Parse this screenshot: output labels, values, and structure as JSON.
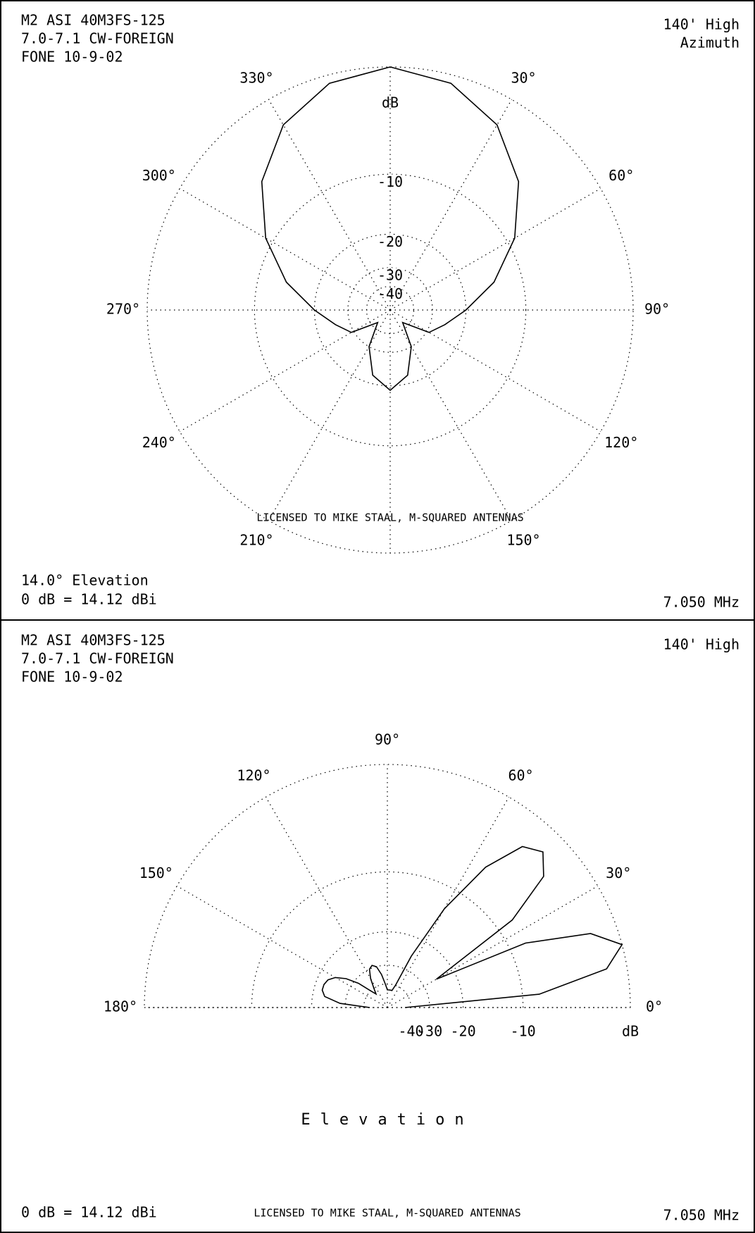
{
  "chart_data": [
    {
      "type": "polar",
      "zero": "north",
      "direction": "clockwise",
      "header": [
        "M2 ASI 40M3FS-125",
        "7.0-7.1 CW-FOREIGN",
        "FONE 10-9-02"
      ],
      "corner_labels": [
        "140' High",
        "Azimuth"
      ],
      "footer_left": [
        "14.0° Elevation",
        "0 dB = 14.12 dBi"
      ],
      "footer_right": "7.050 MHz",
      "license": "LICENSED TO MIKE STAAL, M-SQUARED ANTENNAS",
      "rscale": "arrl",
      "rlim": [
        -50,
        0
      ],
      "rticks": [
        -40,
        -30,
        -20,
        -10
      ],
      "runit": "dB",
      "thetaticks": [
        {
          "value": 30,
          "label": "30°"
        },
        {
          "value": 60,
          "label": "60°"
        },
        {
          "value": 90,
          "label": "90°"
        },
        {
          "value": 120,
          "label": "120°"
        },
        {
          "value": 150,
          "label": "150°"
        },
        {
          "value": 210,
          "label": "210°"
        },
        {
          "value": 240,
          "label": "240°"
        },
        {
          "value": 270,
          "label": "270°"
        },
        {
          "value": 300,
          "label": "300°"
        },
        {
          "value": 330,
          "label": "330°"
        }
      ],
      "series": [
        {
          "color": "#000000",
          "theta": [
            0,
            15,
            30,
            45,
            60,
            75,
            90,
            105,
            120,
            135,
            150,
            165,
            180,
            195,
            210,
            225,
            240,
            255,
            270,
            285,
            300,
            315,
            330,
            345,
            360
          ],
          "values": [
            0,
            -0.6,
            -2.2,
            -5,
            -9,
            -14,
            -20,
            -25,
            -29,
            -45,
            -30,
            -22,
            -19,
            -22,
            -30,
            -45,
            -29,
            -25,
            -20,
            -14,
            -9,
            -5,
            -2.2,
            -0.6,
            0
          ]
        }
      ]
    },
    {
      "type": "polar",
      "zero": "east",
      "direction": "counterclockwise",
      "header": [
        "M2 ASI 40M3FS-125",
        "7.0-7.1 CW-FOREIGN",
        "FONE 10-9-02"
      ],
      "corner_labels": [
        "140' High"
      ],
      "title": "Elevation",
      "footer_left": [
        "0 dB = 14.12 dBi"
      ],
      "footer_right": "7.050 MHz",
      "license": "LICENSED TO MIKE STAAL, M-SQUARED ANTENNAS",
      "rscale": "arrl",
      "rlim": [
        -50,
        0
      ],
      "rticks": [
        -40,
        -30,
        -20,
        -10
      ],
      "runit": "dB",
      "thetaticks": [
        {
          "value": 0,
          "label": "0°"
        },
        {
          "value": 30,
          "label": "30°"
        },
        {
          "value": 60,
          "label": "60°"
        },
        {
          "value": 90,
          "label": "90°"
        },
        {
          "value": 120,
          "label": "120°"
        },
        {
          "value": 150,
          "label": "150°"
        },
        {
          "value": 180,
          "label": "180°"
        }
      ],
      "series": [
        {
          "color": "#000000",
          "theta": [
            0,
            5,
            10,
            15,
            20,
            25,
            30,
            35,
            40,
            45,
            50,
            55,
            60,
            65,
            70,
            75,
            80,
            85,
            90,
            95,
            100,
            105,
            110,
            115,
            120,
            125,
            130,
            135,
            140,
            145,
            150,
            155,
            160,
            165,
            170,
            175,
            180
          ],
          "values": [
            -45,
            -8,
            -1.5,
            0,
            -2,
            -8,
            -25,
            -8,
            -3,
            -1.7,
            -2.5,
            -6,
            -13,
            -25,
            -40,
            -45,
            -45,
            -45,
            -45,
            -40,
            -34,
            -30,
            -29,
            -30,
            -34,
            -40,
            -45,
            -40,
            -32,
            -27,
            -24,
            -22.5,
            -22,
            -22,
            -23,
            -28,
            -45
          ]
        }
      ]
    }
  ]
}
